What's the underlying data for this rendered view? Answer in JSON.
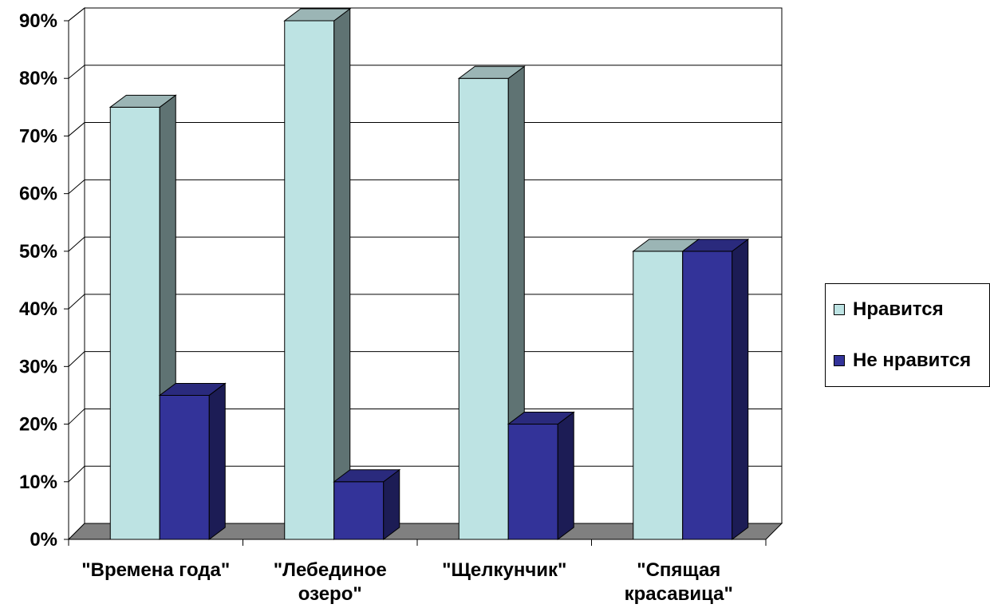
{
  "chart_data": {
    "type": "bar",
    "title": "",
    "xlabel": "",
    "ylabel": "",
    "ylim": [
      0,
      90
    ],
    "y_ticks": [
      "0%",
      "10%",
      "20%",
      "30%",
      "40%",
      "50%",
      "60%",
      "70%",
      "80%",
      "90%"
    ],
    "grid": true,
    "legend_position": "right",
    "categories": [
      [
        "\"Времена года\""
      ],
      [
        "\"Лебединое",
        "озеро\""
      ],
      [
        "\"Щелкунчик\""
      ],
      [
        "\"Спящая",
        "красавица\""
      ]
    ],
    "series": [
      {
        "name": "Нравится",
        "values": [
          75,
          90,
          80,
          50
        ],
        "color": "#bde3e3",
        "side_color": "#5f7373",
        "top_color": "#9bb5b5"
      },
      {
        "name": "Не нравится",
        "values": [
          25,
          10,
          20,
          50
        ],
        "color": "#333399",
        "side_color": "#1c1c55",
        "top_color": "#2a2a7d"
      }
    ]
  },
  "legend": {
    "items": [
      {
        "label": "Нравится",
        "color": "#bde3e3"
      },
      {
        "label": "Не нравится",
        "color": "#333399"
      }
    ]
  }
}
